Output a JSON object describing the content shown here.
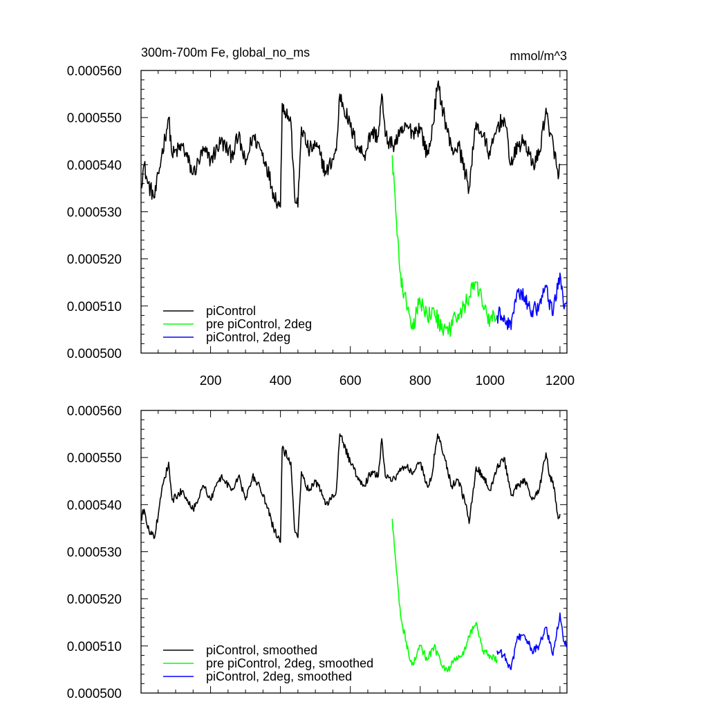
{
  "figure": {
    "title_left": "300m-700m Fe, global_no_ms",
    "title_right": "mmol/m^3"
  },
  "colors": {
    "piControl": "#000000",
    "pre_piControl_2deg": "#00ff00",
    "piControl_2deg": "#0000ff"
  },
  "chart_data": [
    {
      "type": "line",
      "panel": "top",
      "title": "300m-700m Fe, global_no_ms",
      "units": "mmol/m^3",
      "xlim": [
        1,
        1220
      ],
      "ylim": [
        0.0005,
        0.00056
      ],
      "x_ticks": [
        200,
        400,
        600,
        800,
        1000,
        1200
      ],
      "x_tick_labels": [
        "200",
        "400",
        "600",
        "800",
        "1000",
        "1200"
      ],
      "y_ticks": [
        0.0005,
        0.00051,
        0.00052,
        0.00053,
        0.00054,
        0.00055,
        0.00056
      ],
      "y_tick_labels": [
        "0.000500",
        "0.000510",
        "0.000520",
        "0.000530",
        "0.000540",
        "0.000550",
        "0.000560"
      ],
      "legend_position": "bottom-left",
      "grid": false,
      "series": [
        {
          "name": "piControl",
          "color": "#000000",
          "noise": 1.8e-06,
          "anchors": [
            [
              1,
              0.000536
            ],
            [
              10,
              0.00054
            ],
            [
              20,
              0.000536
            ],
            [
              40,
              0.000533
            ],
            [
              60,
              0.000542
            ],
            [
              80,
              0.00055
            ],
            [
              90,
              0.000542
            ],
            [
              120,
              0.000544
            ],
            [
              150,
              0.000538
            ],
            [
              180,
              0.000543
            ],
            [
              200,
              0.000541
            ],
            [
              230,
              0.000545
            ],
            [
              260,
              0.000542
            ],
            [
              280,
              0.000546
            ],
            [
              300,
              0.00054
            ],
            [
              320,
              0.000546
            ],
            [
              340,
              0.000544
            ],
            [
              360,
              0.00054
            ],
            [
              380,
              0.000534
            ],
            [
              400,
              0.000531
            ],
            [
              405,
              0.000553
            ],
            [
              430,
              0.000549
            ],
            [
              440,
              0.000534
            ],
            [
              450,
              0.000531
            ],
            [
              460,
              0.000548
            ],
            [
              480,
              0.000543
            ],
            [
              500,
              0.000544
            ],
            [
              515,
              0.000542
            ],
            [
              530,
              0.000538
            ],
            [
              560,
              0.000543
            ],
            [
              570,
              0.000555
            ],
            [
              600,
              0.000548
            ],
            [
              620,
              0.000544
            ],
            [
              640,
              0.000542
            ],
            [
              660,
              0.000547
            ],
            [
              680,
              0.000546
            ],
            [
              690,
              0.000555
            ],
            [
              700,
              0.000546
            ],
            [
              720,
              0.000544
            ],
            [
              740,
              0.000546
            ],
            [
              760,
              0.000548
            ],
            [
              780,
              0.000547
            ],
            [
              800,
              0.000548
            ],
            [
              820,
              0.000542
            ],
            [
              830,
              0.000545
            ],
            [
              850,
              0.000557
            ],
            [
              870,
              0.00055
            ],
            [
              890,
              0.000543
            ],
            [
              910,
              0.000544
            ],
            [
              930,
              0.000538
            ],
            [
              940,
              0.000535
            ],
            [
              960,
              0.000549
            ],
            [
              980,
              0.000546
            ],
            [
              1000,
              0.000542
            ],
            [
              1020,
              0.000548
            ],
            [
              1040,
              0.00055
            ],
            [
              1060,
              0.00054
            ],
            [
              1080,
              0.000544
            ],
            [
              1100,
              0.000545
            ],
            [
              1120,
              0.00054
            ],
            [
              1140,
              0.000542
            ],
            [
              1160,
              0.000552
            ],
            [
              1170,
              0.000546
            ],
            [
              1180,
              0.000545
            ],
            [
              1195,
              0.000537
            ],
            [
              1200,
              0.00054
            ]
          ]
        },
        {
          "name": "pre piControl, 2deg",
          "color": "#00ff00",
          "noise": 1.8e-06,
          "anchors": [
            [
              720,
              0.000542
            ],
            [
              730,
              0.00053
            ],
            [
              740,
              0.000519
            ],
            [
              750,
              0.000513
            ],
            [
              760,
              0.000511
            ],
            [
              770,
              0.000508
            ],
            [
              780,
              0.000505
            ],
            [
              790,
              0.000509
            ],
            [
              800,
              0.000511
            ],
            [
              820,
              0.000508
            ],
            [
              840,
              0.000509
            ],
            [
              860,
              0.000505
            ],
            [
              880,
              0.000504
            ],
            [
              900,
              0.000508
            ],
            [
              920,
              0.000509
            ],
            [
              940,
              0.000512
            ],
            [
              960,
              0.000515
            ],
            [
              980,
              0.00051
            ],
            [
              1000,
              0.000507
            ],
            [
              1020,
              0.000508
            ]
          ]
        },
        {
          "name": "piControl, 2deg",
          "color": "#0000ff",
          "noise": 1.8e-06,
          "anchors": [
            [
              1020,
              0.000508
            ],
            [
              1040,
              0.000508
            ],
            [
              1060,
              0.000505
            ],
            [
              1080,
              0.000513
            ],
            [
              1100,
              0.000512
            ],
            [
              1120,
              0.000509
            ],
            [
              1140,
              0.00051
            ],
            [
              1160,
              0.000514
            ],
            [
              1180,
              0.000508
            ],
            [
              1200,
              0.000517
            ],
            [
              1210,
              0.00051
            ],
            [
              1220,
              0.000511
            ]
          ]
        }
      ]
    },
    {
      "type": "line",
      "panel": "bottom",
      "title": "",
      "xlim": [
        1,
        1220
      ],
      "ylim": [
        0.0005,
        0.00056
      ],
      "x_ticks": [
        200,
        400,
        600,
        800,
        1000,
        1200
      ],
      "x_tick_labels": [],
      "y_ticks": [
        0.0005,
        0.00051,
        0.00052,
        0.00053,
        0.00054,
        0.00055,
        0.00056
      ],
      "y_tick_labels": [
        "0.000500",
        "0.000510",
        "0.000520",
        "0.000530",
        "0.000540",
        "0.000550",
        "0.000560"
      ],
      "legend_position": "bottom-left",
      "grid": false,
      "series": [
        {
          "name": "piControl, smoothed",
          "color": "#000000",
          "noise": 8e-07,
          "anchors": [
            [
              1,
              0.000537
            ],
            [
              10,
              0.000539
            ],
            [
              20,
              0.000535
            ],
            [
              40,
              0.000533
            ],
            [
              60,
              0.000543
            ],
            [
              80,
              0.000549
            ],
            [
              90,
              0.000541
            ],
            [
              120,
              0.000543
            ],
            [
              150,
              0.000539
            ],
            [
              180,
              0.000544
            ],
            [
              200,
              0.000541
            ],
            [
              230,
              0.000546
            ],
            [
              260,
              0.000543
            ],
            [
              280,
              0.000546
            ],
            [
              300,
              0.000541
            ],
            [
              320,
              0.000546
            ],
            [
              340,
              0.000544
            ],
            [
              360,
              0.00054
            ],
            [
              380,
              0.000535
            ],
            [
              400,
              0.000532
            ],
            [
              405,
              0.000552
            ],
            [
              430,
              0.000549
            ],
            [
              440,
              0.000535
            ],
            [
              450,
              0.000533
            ],
            [
              460,
              0.000547
            ],
            [
              480,
              0.000543
            ],
            [
              500,
              0.000545
            ],
            [
              515,
              0.000543
            ],
            [
              530,
              0.00054
            ],
            [
              560,
              0.000543
            ],
            [
              570,
              0.000555
            ],
            [
              600,
              0.000549
            ],
            [
              620,
              0.000546
            ],
            [
              640,
              0.000544
            ],
            [
              660,
              0.000547
            ],
            [
              680,
              0.000546
            ],
            [
              690,
              0.000554
            ],
            [
              700,
              0.000546
            ],
            [
              720,
              0.000545
            ],
            [
              740,
              0.000547
            ],
            [
              760,
              0.000548
            ],
            [
              780,
              0.000547
            ],
            [
              800,
              0.000549
            ],
            [
              820,
              0.000544
            ],
            [
              830,
              0.000545
            ],
            [
              850,
              0.000555
            ],
            [
              870,
              0.00055
            ],
            [
              890,
              0.000544
            ],
            [
              910,
              0.000545
            ],
            [
              930,
              0.00054
            ],
            [
              940,
              0.000536
            ],
            [
              960,
              0.000548
            ],
            [
              980,
              0.000546
            ],
            [
              1000,
              0.000543
            ],
            [
              1020,
              0.000548
            ],
            [
              1040,
              0.00055
            ],
            [
              1060,
              0.000542
            ],
            [
              1080,
              0.000544
            ],
            [
              1100,
              0.000545
            ],
            [
              1120,
              0.000541
            ],
            [
              1140,
              0.000543
            ],
            [
              1160,
              0.000551
            ],
            [
              1170,
              0.000546
            ],
            [
              1180,
              0.000545
            ],
            [
              1195,
              0.000537
            ],
            [
              1200,
              0.000538
            ]
          ]
        },
        {
          "name": "pre piControl, 2deg, smoothed",
          "color": "#00ff00",
          "noise": 8e-07,
          "anchors": [
            [
              720,
              0.000537
            ],
            [
              730,
              0.000528
            ],
            [
              740,
              0.000519
            ],
            [
              750,
              0.000514
            ],
            [
              760,
              0.000511
            ],
            [
              770,
              0.000507
            ],
            [
              780,
              0.000506
            ],
            [
              790,
              0.000508
            ],
            [
              800,
              0.00051
            ],
            [
              820,
              0.000507
            ],
            [
              840,
              0.00051
            ],
            [
              860,
              0.000506
            ],
            [
              880,
              0.000505
            ],
            [
              900,
              0.000507
            ],
            [
              920,
              0.000508
            ],
            [
              940,
              0.000512
            ],
            [
              960,
              0.000515
            ],
            [
              980,
              0.000509
            ],
            [
              1000,
              0.000508
            ],
            [
              1020,
              0.000507
            ]
          ]
        },
        {
          "name": "piControl, 2deg, smoothed",
          "color": "#0000ff",
          "noise": 8e-07,
          "anchors": [
            [
              1020,
              0.000509
            ],
            [
              1040,
              0.000508
            ],
            [
              1060,
              0.000505
            ],
            [
              1080,
              0.000512
            ],
            [
              1100,
              0.000512
            ],
            [
              1120,
              0.000509
            ],
            [
              1140,
              0.00051
            ],
            [
              1160,
              0.000514
            ],
            [
              1180,
              0.000508
            ],
            [
              1200,
              0.000517
            ],
            [
              1210,
              0.000511
            ],
            [
              1220,
              0.00051
            ]
          ]
        }
      ]
    }
  ]
}
